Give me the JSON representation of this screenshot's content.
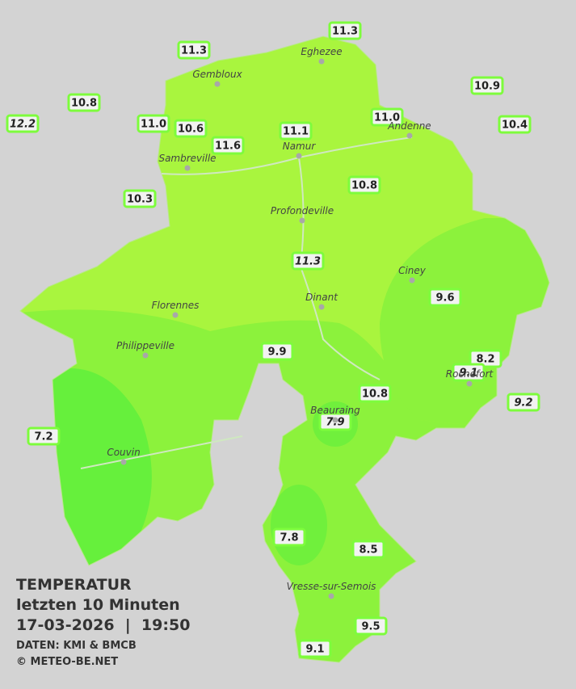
{
  "legend": {
    "title": "TEMPERATUR",
    "subtitle": "letzten 10 Minuten",
    "datetime": "17-03-2026  |  19:50",
    "source": "DATEN: KMI & BMCB",
    "copyright": "© METEO-BE.NET"
  },
  "places": [
    {
      "name": "Eghezee"
    },
    {
      "name": "Gembloux"
    },
    {
      "name": "Andenne"
    },
    {
      "name": "Namur"
    },
    {
      "name": "Sambreville"
    },
    {
      "name": "Profondeville"
    },
    {
      "name": "Ciney"
    },
    {
      "name": "Dinant"
    },
    {
      "name": "Florennes"
    },
    {
      "name": "Philippeville"
    },
    {
      "name": "Rochefort"
    },
    {
      "name": "Beauraing"
    },
    {
      "name": "Couvin"
    },
    {
      "name": "Vresse-sur-Semois"
    }
  ],
  "stations": [
    {
      "value": "11.3"
    },
    {
      "value": "11.3"
    },
    {
      "value": "10.9"
    },
    {
      "value": "10.8"
    },
    {
      "value": "12.2"
    },
    {
      "value": "11.0"
    },
    {
      "value": "10.6"
    },
    {
      "value": "11.0"
    },
    {
      "value": "10.4"
    },
    {
      "value": "11.1"
    },
    {
      "value": "11.6"
    },
    {
      "value": "10.3"
    },
    {
      "value": "10.8"
    },
    {
      "value": "11.3"
    },
    {
      "value": "9.6"
    },
    {
      "value": "9.9"
    },
    {
      "value": "8.2"
    },
    {
      "value": "9.1"
    },
    {
      "value": "9.2"
    },
    {
      "value": "10.8"
    },
    {
      "value": "7.9"
    },
    {
      "value": "7.2"
    },
    {
      "value": "7.8"
    },
    {
      "value": "8.5"
    },
    {
      "value": "9.5"
    },
    {
      "value": "9.1"
    }
  ]
}
